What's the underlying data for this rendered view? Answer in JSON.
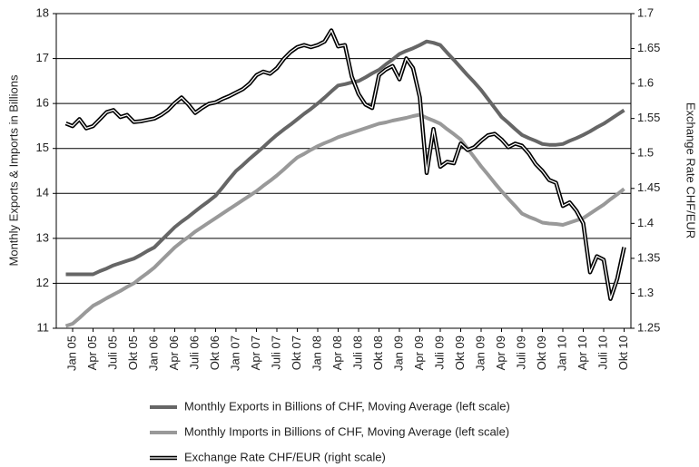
{
  "chart_data": {
    "type": "line",
    "ylabel": "Monthly Exports & Imports in Billions",
    "y2label": "Exchange Rate CHF/EUR",
    "categories": [
      null,
      "Jan 05",
      null,
      null,
      "Apr 05",
      null,
      null,
      "Juli 05",
      null,
      null,
      "Okt 05",
      null,
      null,
      "Jan 06",
      null,
      null,
      "Apr 06",
      null,
      null,
      "Juli 06",
      null,
      null,
      "Okt 06",
      null,
      null,
      "Jan 07",
      null,
      null,
      "Apr 07",
      null,
      null,
      "Juli 07",
      null,
      null,
      "Okt 07",
      null,
      null,
      "Jan 08",
      null,
      null,
      "Apr 08",
      null,
      null,
      "Juli 08",
      null,
      null,
      "Okt 08",
      null,
      null,
      "Jan 09",
      null,
      null,
      "Apr 09",
      null,
      null,
      "Juli 09",
      null,
      null,
      "Okt 09",
      null,
      null,
      "Jan 09",
      null,
      null,
      "Apr 09",
      null,
      null,
      "Juli 09",
      null,
      null,
      "Okt 09",
      null,
      null,
      "Jan 10",
      null,
      null,
      "Apr 10",
      null,
      null,
      "Juli 10",
      null,
      null,
      "Okt 10"
    ],
    "ylim": [
      11,
      18
    ],
    "yticks": [
      11,
      12,
      13,
      14,
      15,
      16,
      17,
      18
    ],
    "y2lim": [
      1.25,
      1.7
    ],
    "y2ticks": [
      1.25,
      1.3,
      1.35,
      1.4,
      1.45,
      1.5,
      1.55,
      1.6,
      1.65,
      1.7
    ],
    "grid": true,
    "legend": "bottom",
    "series": [
      {
        "name": "Monthly Exports in Billions of CHF, Moving Average (left scale)",
        "color": "#666666",
        "axis": "y",
        "values": [
          12.2,
          12.2,
          12.2,
          12.2,
          12.2,
          12.27,
          12.33,
          12.4,
          12.45,
          12.5,
          12.55,
          12.63,
          12.72,
          12.8,
          12.95,
          13.1,
          13.25,
          13.37,
          13.48,
          13.6,
          13.72,
          13.83,
          13.95,
          14.13,
          14.32,
          14.5,
          14.63,
          14.77,
          14.9,
          15.03,
          15.17,
          15.3,
          15.42,
          15.53,
          15.65,
          15.77,
          15.88,
          16.0,
          16.13,
          16.27,
          16.4,
          16.43,
          16.47,
          16.5,
          16.58,
          16.67,
          16.75,
          16.87,
          16.98,
          17.1,
          17.17,
          17.23,
          17.3,
          17.38,
          17.35,
          17.3,
          17.13,
          16.97,
          16.8,
          16.63,
          16.47,
          16.3,
          16.1,
          15.9,
          15.7,
          15.57,
          15.43,
          15.3,
          15.23,
          15.17,
          15.1,
          15.08,
          15.08,
          15.1,
          15.17,
          15.23,
          15.3,
          15.38,
          15.47,
          15.55,
          15.65,
          15.75,
          15.85
        ]
      },
      {
        "name": "Monthly Imports in Billions of CHF, Moving Average (left scale)",
        "color": "#999999",
        "axis": "y",
        "values": [
          11.05,
          11.1,
          11.23,
          11.37,
          11.5,
          11.58,
          11.67,
          11.75,
          11.83,
          11.92,
          12.0,
          12.12,
          12.23,
          12.35,
          12.5,
          12.65,
          12.8,
          12.92,
          13.03,
          13.15,
          13.25,
          13.35,
          13.45,
          13.55,
          13.65,
          13.75,
          13.85,
          13.95,
          14.05,
          14.17,
          14.28,
          14.4,
          14.53,
          14.67,
          14.8,
          14.88,
          14.97,
          15.05,
          15.12,
          15.18,
          15.25,
          15.3,
          15.35,
          15.4,
          15.45,
          15.5,
          15.55,
          15.58,
          15.62,
          15.65,
          15.68,
          15.72,
          15.75,
          15.68,
          15.62,
          15.55,
          15.43,
          15.32,
          15.2,
          15.0,
          14.8,
          14.6,
          14.42,
          14.23,
          14.05,
          13.88,
          13.72,
          13.55,
          13.48,
          13.42,
          13.35,
          13.33,
          13.32,
          13.3,
          13.35,
          13.4,
          13.45,
          13.55,
          13.65,
          13.75,
          13.87,
          13.98,
          14.1
        ]
      },
      {
        "name": "Exchange Rate CHF/EUR (right scale)",
        "color": "#000000",
        "axis": "y2",
        "line_style": "double",
        "values": [
          1.543,
          1.539,
          1.549,
          1.536,
          1.539,
          1.549,
          1.559,
          1.562,
          1.552,
          1.555,
          1.545,
          1.546,
          1.548,
          1.55,
          1.555,
          1.562,
          1.572,
          1.58,
          1.57,
          1.558,
          1.565,
          1.571,
          1.573,
          1.578,
          1.582,
          1.587,
          1.592,
          1.6,
          1.612,
          1.617,
          1.614,
          1.622,
          1.635,
          1.645,
          1.652,
          1.655,
          1.652,
          1.655,
          1.66,
          1.676,
          1.653,
          1.655,
          1.61,
          1.585,
          1.57,
          1.565,
          1.612,
          1.62,
          1.625,
          1.606,
          1.636,
          1.622,
          1.58,
          1.472,
          1.535,
          1.481,
          1.488,
          1.486,
          1.514,
          1.505,
          1.509,
          1.518,
          1.526,
          1.528,
          1.52,
          1.509,
          1.514,
          1.511,
          1.5,
          1.485,
          1.475,
          1.462,
          1.458,
          1.425,
          1.43,
          1.418,
          1.4,
          1.33,
          1.353,
          1.348,
          1.292,
          1.321,
          1.366
        ]
      }
    ]
  }
}
